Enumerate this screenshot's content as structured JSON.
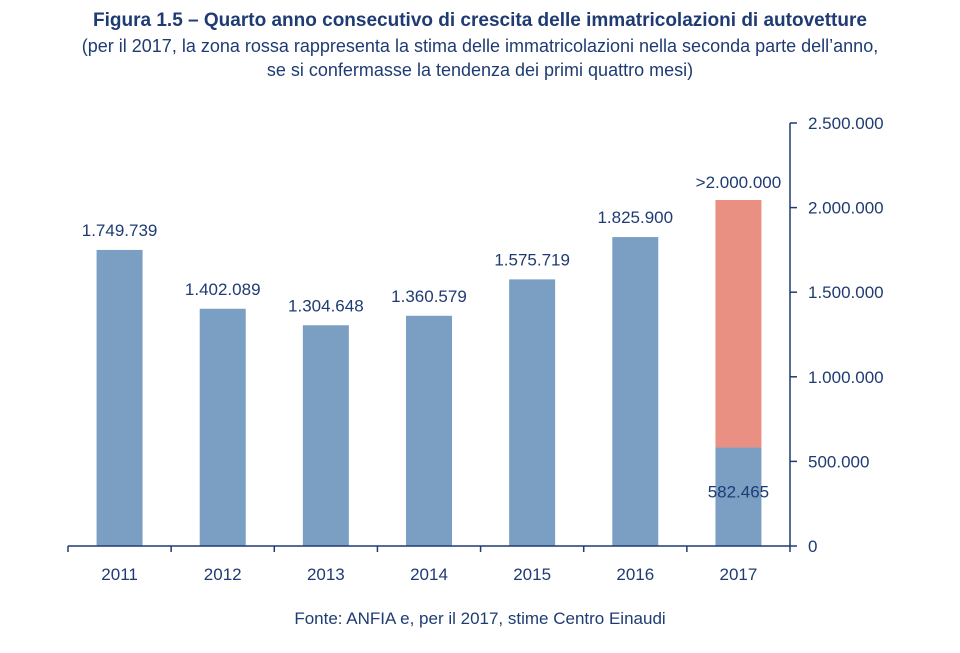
{
  "chart_data": {
    "type": "bar",
    "stacked": true,
    "title": "Figura 1.5 – Quarto anno consecutivo di crescita delle immatricolazioni di autovetture",
    "subtitle": [
      "(per il 2017, la zona rossa rappresenta la stima delle immatricolazioni nella seconda parte dell’anno,",
      "se si confermasse la tendenza dei primi quattro mesi)"
    ],
    "source": "Fonte: ANFIA e, per il 2017, stime Centro Einaudi",
    "categories": [
      "2011",
      "2012",
      "2013",
      "2014",
      "2015",
      "2016",
      "2017"
    ],
    "series": [
      {
        "values": [
          1749739,
          1402089,
          1304648,
          1360579,
          1575719,
          1825900,
          582465
        ],
        "color": "#7b9fc3"
      },
      {
        "values": [
          0,
          0,
          0,
          0,
          0,
          0,
          1462535
        ],
        "color": "#e99083"
      }
    ],
    "data_labels": [
      "1.749.739",
      "1.402.089",
      "1.304.648",
      "1.360.579",
      "1.575.719",
      "1.825.900",
      "582.465"
    ],
    "estimate_label": ">2.000.000",
    "yaxis": {
      "position": "right",
      "ylim": [
        0,
        2500000
      ],
      "ticks": [
        0,
        500000,
        1000000,
        1500000,
        2000000,
        2500000
      ],
      "tick_labels": [
        "0",
        "500.000",
        "1.000.000",
        "1.500.000",
        "2.000.000",
        "2.500.000"
      ]
    },
    "xlabel": "",
    "ylabel": "",
    "grid": false,
    "legend": "none",
    "axis_color": "#1f3b73"
  }
}
